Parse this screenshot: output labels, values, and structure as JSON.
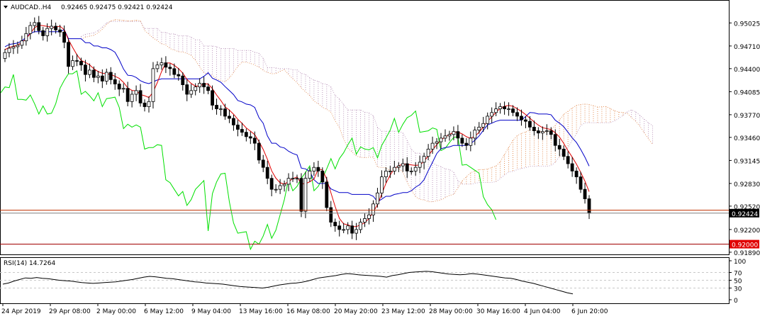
{
  "header": {
    "symbol": "AUDCAD..H4",
    "ohlc": "0.92465 0.92475 0.92421 0.92424"
  },
  "rsi_label": "RSI(14) 14.7264",
  "price_axis": {
    "ticks": [
      "0.95025",
      "0.94710",
      "0.94400",
      "0.94085",
      "0.93770",
      "0.93460",
      "0.93145",
      "0.92830",
      "0.92520",
      "0.92200",
      "0.91890"
    ],
    "tick_values": [
      0.95025,
      0.9471,
      0.944,
      0.94085,
      0.9377,
      0.9346,
      0.93145,
      0.9283,
      0.9252,
      0.922,
      0.9189
    ]
  },
  "price_tags": [
    {
      "label": "0.92424",
      "value": 0.92424,
      "style": "current"
    },
    {
      "label": "0.92000",
      "value": 0.92,
      "style": "level"
    }
  ],
  "rsi_axis": {
    "ticks": [
      "100",
      "70",
      "50",
      "30",
      "0"
    ],
    "tick_values": [
      100,
      70,
      50,
      30,
      0
    ]
  },
  "time_axis": [
    "24 Apr 2019",
    "29 Apr 08:00",
    "2 May 00:00",
    "6 May 12:00",
    "9 May 04:00",
    "13 May 16:00",
    "16 May 08:00",
    "20 May 20:00",
    "23 May 12:00",
    "28 May 00:00",
    "30 May 16:00",
    "4 Jun 04:00",
    "6 Jun 20:00"
  ],
  "colors": {
    "bull_candle": "#ffffff",
    "bear_candle": "#000000",
    "tenkan": "#e00000",
    "kijun": "#0000c8",
    "chikou": "#00e000",
    "kumo_bear": "#b48cb4",
    "kumo_bull": "#e08040",
    "hline": "#c03000",
    "tag_current": "#000000",
    "tag_level": "#e00000",
    "rsi_line": "#000000",
    "grid": "#c8c8c8"
  },
  "chart_data": [
    {
      "type": "candlestick",
      "title": "AUDCAD..H4",
      "indicators": [
        "Ichimoku (tenkan, kijun, senkou A/B cloud, chikou)"
      ],
      "ylim": [
        0.9189,
        0.953
      ],
      "horizontal_levels": [
        0.92424,
        0.92
      ],
      "x_labels": [
        "24 Apr 2019",
        "29 Apr 08:00",
        "2 May 00:00",
        "6 May 12:00",
        "9 May 04:00",
        "13 May 16:00",
        "16 May 08:00",
        "20 May 20:00",
        "23 May 12:00",
        "28 May 00:00",
        "30 May 16:00",
        "4 Jun 04:00",
        "6 Jun 20:00"
      ],
      "close": [
        0.9462,
        0.9468,
        0.947,
        0.9472,
        0.9478,
        0.9488,
        0.9499,
        0.9503,
        0.9492,
        0.9485,
        0.9495,
        0.9498,
        0.9493,
        0.949,
        0.9476,
        0.9443,
        0.9451,
        0.945,
        0.9445,
        0.9432,
        0.9438,
        0.9428,
        0.943,
        0.9423,
        0.9435,
        0.9425,
        0.9419,
        0.9412,
        0.9413,
        0.9395,
        0.9405,
        0.941,
        0.9393,
        0.9388,
        0.9395,
        0.944,
        0.9445,
        0.9448,
        0.9442,
        0.944,
        0.9432,
        0.943,
        0.9418,
        0.9405,
        0.941,
        0.9415,
        0.942,
        0.9415,
        0.941,
        0.939,
        0.9385,
        0.9385,
        0.9375,
        0.9372,
        0.9363,
        0.9357,
        0.9353,
        0.9347,
        0.9345,
        0.9338,
        0.9315,
        0.9305,
        0.929,
        0.9275,
        0.9275,
        0.928,
        0.9282,
        0.929,
        0.929,
        0.929,
        0.9245,
        0.929,
        0.93,
        0.9305,
        0.93,
        0.9285,
        0.925,
        0.923,
        0.9225,
        0.922,
        0.922,
        0.9225,
        0.9215,
        0.922,
        0.923,
        0.9235,
        0.924,
        0.9255,
        0.927,
        0.9292,
        0.93,
        0.93,
        0.9305,
        0.9307,
        0.931,
        0.93,
        0.93,
        0.9305,
        0.9312,
        0.932,
        0.933,
        0.9338,
        0.934,
        0.9345,
        0.9348,
        0.935,
        0.9354,
        0.9345,
        0.9338,
        0.9335,
        0.9345,
        0.9356,
        0.936,
        0.9365,
        0.9375,
        0.938,
        0.9385,
        0.9388,
        0.9385,
        0.9385,
        0.938,
        0.9375,
        0.937,
        0.9368,
        0.936,
        0.9355,
        0.9352,
        0.9354,
        0.9355,
        0.935,
        0.9335,
        0.933,
        0.932,
        0.931,
        0.93,
        0.9292,
        0.9275,
        0.9262,
        0.92424
      ],
      "rsi": {
        "period": 14,
        "current": 14.7264,
        "values": [
          40,
          43,
          48,
          52,
          56,
          55,
          57,
          55,
          54,
          52,
          50,
          49,
          48,
          46,
          44,
          43,
          42,
          43,
          44,
          45,
          46,
          48,
          50,
          52,
          55,
          58,
          60,
          59,
          57,
          55,
          54,
          52,
          50,
          48,
          46,
          45,
          43,
          42,
          41,
          40,
          38,
          36,
          34,
          33,
          32,
          31,
          30,
          32,
          35,
          38,
          40,
          42,
          43,
          45,
          48,
          52,
          56,
          58,
          60,
          62,
          65,
          67,
          66,
          64,
          63,
          62,
          61,
          60,
          58,
          62,
          64,
          67,
          70,
          71,
          72,
          73,
          72,
          70,
          68,
          66,
          65,
          64,
          65,
          67,
          66,
          64,
          62,
          60,
          58,
          56,
          55,
          52,
          48,
          45,
          42,
          38,
          34,
          30,
          26,
          22,
          18,
          15
        ]
      }
    }
  ]
}
